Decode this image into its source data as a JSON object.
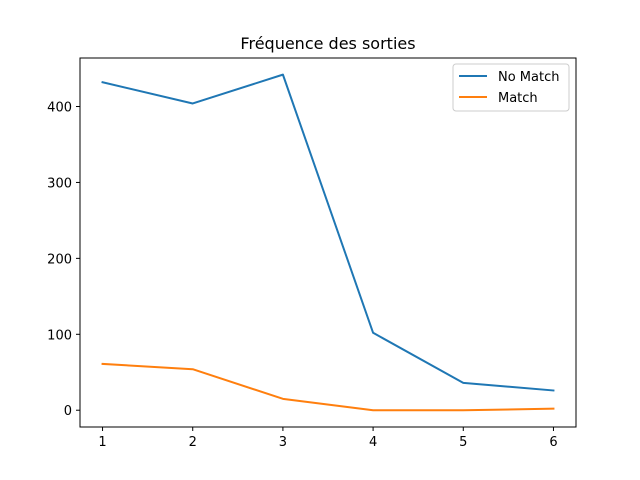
{
  "chart_data": {
    "type": "line",
    "title": "Fréquence des sorties",
    "xlabel": "",
    "ylabel": "",
    "x": [
      1,
      2,
      3,
      4,
      5,
      6
    ],
    "xlim": [
      0.75,
      6.25
    ],
    "ylim": [
      -22.1,
      463.9
    ],
    "xticks": [
      1,
      2,
      3,
      4,
      5,
      6
    ],
    "yticks": [
      0,
      100,
      200,
      300,
      400
    ],
    "grid": false,
    "legend_position": "top-right",
    "series": [
      {
        "name": "No Match",
        "color": "#1f77b4",
        "values": [
          432,
          404,
          442,
          102,
          36,
          26
        ]
      },
      {
        "name": "Match",
        "color": "#ff7f0e",
        "values": [
          61,
          54,
          15,
          0,
          0,
          2
        ]
      }
    ]
  }
}
